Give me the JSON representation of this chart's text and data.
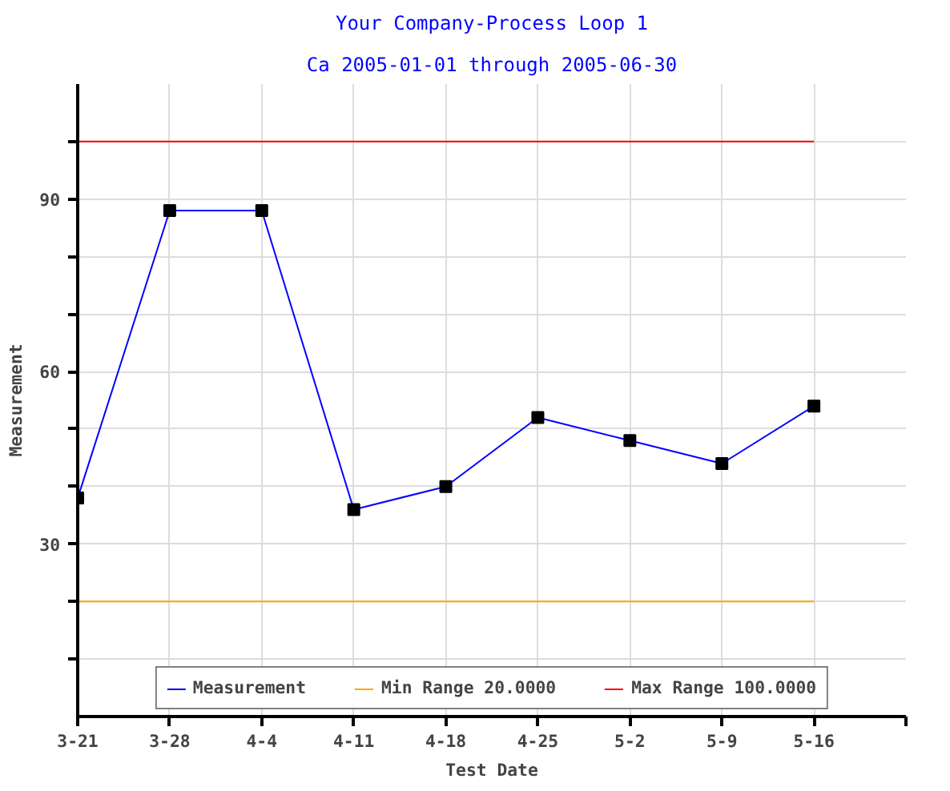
{
  "chart_data": {
    "type": "line",
    "title": "Your Company-Process Loop 1",
    "subtitle": "Ca 2005-01-01 through 2005-06-30",
    "xlabel": "Test Date",
    "ylabel": "Measurement",
    "x": [
      "2005-03-21",
      "2005-03-28",
      "2005-04-04",
      "2005-04-11",
      "2005-04-18",
      "2005-04-25",
      "2005-05-02",
      "2005-05-09",
      "2005-05-16"
    ],
    "series": [
      {
        "name": "Measurement",
        "color": "#0000ff",
        "values": [
          38,
          88,
          88,
          36,
          40,
          52,
          48,
          44,
          54
        ]
      }
    ],
    "xlim": [
      "2005-03-21",
      "2005-05-23"
    ],
    "xticks": [
      {
        "value": "2005-03-21",
        "label": "3-21"
      },
      {
        "value": "2005-03-28",
        "label": "3-28"
      },
      {
        "value": "2005-04-04",
        "label": "4-4"
      },
      {
        "value": "2005-04-11",
        "label": "4-11"
      },
      {
        "value": "2005-04-18",
        "label": "4-18"
      },
      {
        "value": "2005-04-25",
        "label": "4-25"
      },
      {
        "value": "2005-05-02",
        "label": "5-2"
      },
      {
        "value": "2005-05-09",
        "label": "5-9"
      },
      {
        "value": "2005-05-16",
        "label": "5-16"
      },
      {
        "value": "2005-05-23",
        "label": null
      }
    ],
    "ylim": [
      0,
      110
    ],
    "yticks": [
      {
        "value": 10,
        "label": null
      },
      {
        "value": 20,
        "label": null
      },
      30,
      {
        "value": 40,
        "label": null
      },
      {
        "value": 50,
        "label": null
      },
      60,
      {
        "value": 70,
        "label": null
      },
      {
        "value": 80,
        "label": null
      },
      90,
      {
        "value": 100,
        "label": null
      }
    ],
    "ref_lines": [
      {
        "axis": "y",
        "value": 20,
        "label": "Min Range 20.0000",
        "color": "#ffa500"
      },
      {
        "axis": "y",
        "value": 100,
        "label": "Max Range 100.0000",
        "color": "#ff0000"
      }
    ],
    "grid": true,
    "legend": "bottom",
    "marker": "square",
    "line_style": "solid"
  }
}
